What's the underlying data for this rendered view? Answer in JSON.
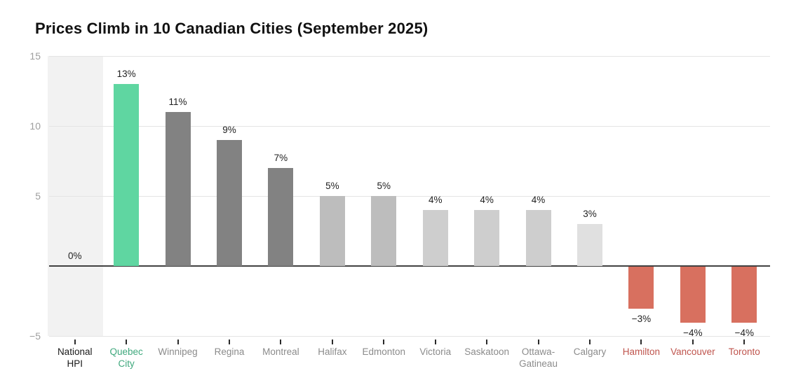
{
  "page": {
    "background": "#ffffff"
  },
  "header": {
    "title": "Prices Climb in 10 Canadian Cities (September 2025)"
  },
  "chart_data": {
    "type": "bar",
    "title": "Prices Climb in 10 Canadian Cities (September 2025)",
    "unit": "%",
    "categories": [
      "National HPI",
      "Quebec City",
      "Winnipeg",
      "Regina",
      "Montreal",
      "Halifax",
      "Edmonton",
      "Victoria",
      "Saskatoon",
      "Ottawa-Gatineau",
      "Calgary",
      "Hamilton",
      "Vancouver",
      "Toronto"
    ],
    "category_display": [
      "National\nHPI",
      "Quebec\nCity",
      "Winnipeg",
      "Regina",
      "Montreal",
      "Halifax",
      "Edmonton",
      "Victoria",
      "Saskatoon",
      "Ottawa-\nGatineau",
      "Calgary",
      "Hamilton",
      "Vancouver",
      "Toronto"
    ],
    "values": [
      0,
      13,
      11,
      9,
      7,
      5,
      5,
      4,
      4,
      4,
      3,
      -3,
      -4,
      -4
    ],
    "value_labels": [
      "0%",
      "13%",
      "11%",
      "9%",
      "7%",
      "5%",
      "5%",
      "4%",
      "4%",
      "4%",
      "3%",
      "−3%",
      "−4%",
      "−4%"
    ],
    "bar_colors": [
      null,
      "#5fd6a1",
      "#828282",
      "#828282",
      "#828282",
      "#bdbdbd",
      "#bdbdbd",
      "#cecece",
      "#cecece",
      "#cecece",
      "#e0e0e0",
      "#d8705f",
      "#d8705f",
      "#d8705f"
    ],
    "category_label_colors": [
      "#1a1a1a",
      "#3fa87d",
      "#8b8b8b",
      "#8b8b8b",
      "#8b8b8b",
      "#8b8b8b",
      "#8b8b8b",
      "#8b8b8b",
      "#8b8b8b",
      "#8b8b8b",
      "#8b8b8b",
      "#bf544d",
      "#bf544d",
      "#bf544d"
    ],
    "background_band": {
      "category_index": 0,
      "color": "#f2f2f2"
    },
    "ylim": [
      -5,
      15
    ],
    "y_ticks": [
      {
        "label": "15",
        "value": 15
      },
      {
        "label": "10",
        "value": 10
      },
      {
        "label": "5",
        "value": 5
      },
      {
        "label": "−5",
        "value": -5
      }
    ],
    "grid": "horizontal",
    "legend": "none",
    "colors": {
      "gridline": "#e4e4e4",
      "zero_line": "#414141",
      "axis_tick_label": "#9e9e9e",
      "value_label": "#1f1f1f",
      "x_tick_mark": "#2b2b2b"
    }
  }
}
